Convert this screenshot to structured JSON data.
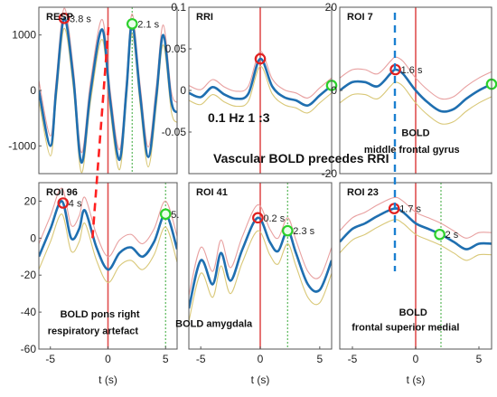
{
  "figure": {
    "headline": "Vascular BOLD precedes RRI",
    "xlabel": "t (s)"
  },
  "colors": {
    "mean": "#1f6fb0",
    "upper": "#e8a0a0",
    "lower": "#d9c878",
    "red_line": "#e05050",
    "green_line": "#5ab85a",
    "red_marker": "#e02020",
    "green_marker": "#2bd02b",
    "red_dash": "#ff2020",
    "blue_dash": "#1a7fd0"
  },
  "chart_data": [
    {
      "type": "line",
      "title": "RESP",
      "xlabel": "",
      "ylabel": "",
      "xlim": [
        -6,
        6
      ],
      "ylim": [
        -1500,
        1500
      ],
      "yticks": [
        -1000,
        0,
        1000
      ],
      "ytick_labels": [
        "-1000",
        "0",
        "1000"
      ],
      "xticks": [],
      "xtick_labels": [],
      "y_axis_side": "left",
      "series": [
        {
          "x": [
            -6,
            -5,
            -4.5,
            -3.8,
            -3,
            -2.3,
            -1.5,
            -0.5,
            0.2,
            1,
            1.6,
            2.1,
            2.8,
            3.5,
            4.2,
            4.8,
            5.5,
            6
          ],
          "y": [
            0,
            -1000,
            0,
            1300,
            200,
            -1300,
            0,
            1100,
            -200,
            -1250,
            0,
            1200,
            -100,
            -1200,
            -100,
            1000,
            -200,
            -400
          ]
        }
      ],
      "band": 180,
      "vlines": [
        {
          "x": 0,
          "color": "red"
        },
        {
          "x": 2.1,
          "color": "green"
        }
      ],
      "markers": [
        {
          "x": -3.8,
          "y": 1300,
          "color": "red",
          "label": "3.8 s"
        },
        {
          "x": 2.1,
          "y": 1200,
          "color": "green",
          "label": "2.1 s"
        }
      ],
      "annotations": []
    },
    {
      "type": "line",
      "title": "RRI",
      "xlabel": "",
      "ylabel": "",
      "xlim": [
        -6,
        6
      ],
      "ylim": [
        -0.1,
        0.1
      ],
      "yticks": [
        -0.05,
        0,
        0.05,
        0.1
      ],
      "ytick_labels": [
        "-0.05",
        "0",
        "0.05",
        "0.1"
      ],
      "xticks": [],
      "xtick_labels": [],
      "y_axis_side": "left",
      "series": [
        {
          "x": [
            -6,
            -5,
            -4,
            -3,
            -2,
            -1,
            0,
            1,
            2,
            3,
            4,
            5,
            6
          ],
          "y": [
            -0.003,
            -0.008,
            0.004,
            -0.005,
            -0.01,
            -0.004,
            0.038,
            0.005,
            -0.008,
            -0.012,
            -0.018,
            -0.006,
            0.006
          ]
        }
      ],
      "band": 0.009,
      "vlines": [
        {
          "x": 0,
          "color": "red"
        }
      ],
      "markers": [
        {
          "x": 0,
          "y": 0.038,
          "color": "red",
          "label": ""
        },
        {
          "x": 6,
          "y": 0.006,
          "color": "green",
          "label": ""
        }
      ],
      "annotations": [
        {
          "text": "0.1 Hz 1 :3",
          "x": -1.8,
          "y": -0.038,
          "size": "big"
        }
      ]
    },
    {
      "type": "line",
      "title": "ROI 7",
      "xlabel": "",
      "ylabel": "",
      "xlim": [
        -6,
        6
      ],
      "ylim": [
        -20,
        20
      ],
      "yticks": [
        -20,
        0,
        20
      ],
      "ytick_labels": [
        "-20",
        "0",
        "20"
      ],
      "xticks": [],
      "xtick_labels": [],
      "y_axis_side": "left",
      "series": [
        {
          "x": [
            -6,
            -5,
            -4,
            -3,
            -2,
            -1.6,
            -1,
            0,
            1,
            2,
            3,
            4,
            5,
            6
          ],
          "y": [
            0,
            2,
            2,
            1,
            4,
            5,
            4,
            0,
            -3,
            -5,
            -4.5,
            -2,
            0,
            1.5
          ]
        }
      ],
      "band": 3,
      "vlines": [
        {
          "x": 0,
          "color": "red"
        }
      ],
      "markers": [
        {
          "x": -1.6,
          "y": 5,
          "color": "red",
          "label": "1.6 s"
        },
        {
          "x": 6,
          "y": 1.5,
          "color": "green",
          "label": ""
        }
      ],
      "annotations": [
        {
          "text": "BOLD",
          "x": 0,
          "y": -11,
          "size": "normal"
        },
        {
          "text": "middle frontal gyrus",
          "x": -0.3,
          "y": -15,
          "size": "normal"
        }
      ]
    },
    {
      "type": "line",
      "title": "ROI 96",
      "xlabel": "t (s)",
      "ylabel": "",
      "xlim": [
        -6,
        6
      ],
      "ylim": [
        -60,
        30
      ],
      "yticks": [
        -60,
        -40,
        -20,
        0,
        20
      ],
      "ytick_labels": [
        "-60",
        "-40",
        "-20",
        "0",
        "20"
      ],
      "xticks": [
        -5,
        0,
        5
      ],
      "xtick_labels": [
        "-5",
        "0",
        "5"
      ],
      "y_axis_side": "left",
      "series": [
        {
          "x": [
            -6,
            -5,
            -4,
            -3.2,
            -2.5,
            -2,
            -1,
            0,
            1,
            2,
            3,
            4,
            5,
            6
          ],
          "y": [
            -10,
            5,
            20,
            0,
            5,
            15,
            -5,
            -17,
            -8,
            -5,
            -10,
            -2,
            13,
            -6
          ]
        }
      ],
      "band": 7,
      "vlines": [
        {
          "x": 0,
          "color": "red"
        },
        {
          "x": 5,
          "color": "green"
        }
      ],
      "markers": [
        {
          "x": -3.9,
          "y": 19,
          "color": "red",
          "label": "4 s"
        },
        {
          "x": 5,
          "y": 13,
          "color": "green",
          "label": "5."
        }
      ],
      "annotations": [
        {
          "text": "BOLD pons right",
          "x": -0.7,
          "y": -43,
          "size": "normal"
        },
        {
          "text": "respiratory artefact",
          "x": -1.3,
          "y": -52,
          "size": "normal"
        }
      ]
    },
    {
      "type": "line",
      "title": "ROI 41",
      "xlabel": "t (s)",
      "ylabel": "",
      "xlim": [
        -6,
        6
      ],
      "ylim": [
        -60,
        30
      ],
      "yticks": [],
      "ytick_labels": [],
      "xticks": [
        -5,
        0,
        5
      ],
      "xtick_labels": [
        "-5",
        "0",
        "5"
      ],
      "y_axis_side": "left",
      "series": [
        {
          "x": [
            -6,
            -5,
            -4,
            -3.3,
            -2.5,
            -1.5,
            -0.2,
            0.8,
            1.5,
            2.3,
            3,
            4,
            5,
            6
          ],
          "y": [
            -38,
            -12,
            -25,
            -8,
            -23,
            -6,
            11,
            -2,
            -7,
            4,
            -8,
            -25,
            -28,
            -12
          ]
        }
      ],
      "band": 7,
      "vlines": [
        {
          "x": 0,
          "color": "red"
        },
        {
          "x": 2.3,
          "color": "green"
        }
      ],
      "markers": [
        {
          "x": -0.2,
          "y": 11,
          "color": "red",
          "label": "0.2 s"
        },
        {
          "x": 2.3,
          "y": 4,
          "color": "green",
          "label": "2.3 s"
        }
      ],
      "annotations": [
        {
          "text": "BOLD amygdala",
          "x": -3.9,
          "y": -48,
          "size": "normal"
        }
      ]
    },
    {
      "type": "line",
      "title": "ROI 23",
      "xlabel": "t (s)",
      "ylabel": "",
      "xlim": [
        -6,
        6
      ],
      "ylim": [
        -60,
        30
      ],
      "yticks": [],
      "ytick_labels": [],
      "xticks": [
        -5,
        0,
        5
      ],
      "xtick_labels": [
        "-5",
        "0",
        "5"
      ],
      "y_axis_side": "left",
      "series": [
        {
          "x": [
            -6,
            -5,
            -4,
            -3,
            -1.7,
            -1,
            0,
            1,
            2,
            3,
            4,
            5,
            6
          ],
          "y": [
            -2,
            5,
            8,
            12,
            16,
            14,
            8,
            5,
            2,
            -2,
            -6,
            -3,
            -3
          ]
        }
      ],
      "band": 6,
      "vlines": [
        {
          "x": 0,
          "color": "red"
        },
        {
          "x": 2,
          "color": "green"
        }
      ],
      "markers": [
        {
          "x": -1.7,
          "y": 16,
          "color": "red",
          "label": "1.7 s"
        },
        {
          "x": 1.9,
          "y": 2,
          "color": "green",
          "label": "2 s"
        }
      ],
      "annotations": [
        {
          "text": "BOLD",
          "x": -0.2,
          "y": -42,
          "size": "normal"
        },
        {
          "text": "frontal superior medial",
          "x": -0.8,
          "y": -50,
          "size": "normal"
        }
      ]
    }
  ]
}
